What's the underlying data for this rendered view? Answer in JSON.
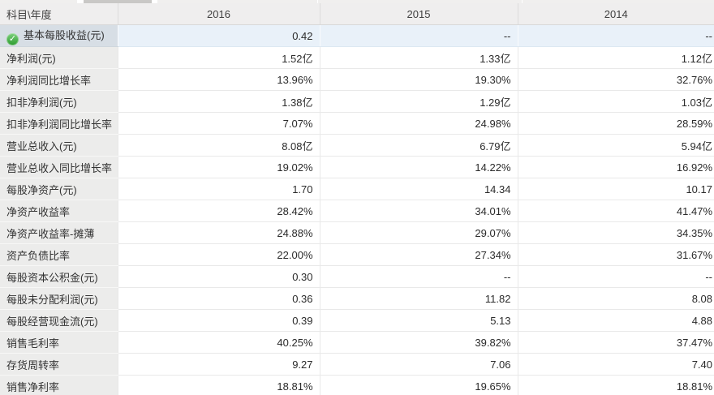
{
  "table": {
    "corner_header": "科目\\年度",
    "year_columns": [
      "2016",
      "2015",
      "2014"
    ],
    "rows": [
      {
        "label": "基本每股收益(元)",
        "values": [
          "0.42",
          "--",
          "--"
        ],
        "highlighted": true,
        "icon": "check"
      },
      {
        "label": "净利润(元)",
        "values": [
          "1.52亿",
          "1.33亿",
          "1.12亿"
        ]
      },
      {
        "label": "净利润同比增长率",
        "values": [
          "13.96%",
          "19.30%",
          "32.76%"
        ]
      },
      {
        "label": "扣非净利润(元)",
        "values": [
          "1.38亿",
          "1.29亿",
          "1.03亿"
        ]
      },
      {
        "label": "扣非净利润同比增长率",
        "values": [
          "7.07%",
          "24.98%",
          "28.59%"
        ]
      },
      {
        "label": "营业总收入(元)",
        "values": [
          "8.08亿",
          "6.79亿",
          "5.94亿"
        ]
      },
      {
        "label": "营业总收入同比增长率",
        "values": [
          "19.02%",
          "14.22%",
          "16.92%"
        ]
      },
      {
        "label": "每股净资产(元)",
        "values": [
          "1.70",
          "14.34",
          "10.17"
        ]
      },
      {
        "label": "净资产收益率",
        "values": [
          "28.42%",
          "34.01%",
          "41.47%"
        ]
      },
      {
        "label": "净资产收益率-摊薄",
        "values": [
          "24.88%",
          "29.07%",
          "34.35%"
        ]
      },
      {
        "label": "资产负债比率",
        "values": [
          "22.00%",
          "27.34%",
          "31.67%"
        ]
      },
      {
        "label": "每股资本公积金(元)",
        "values": [
          "0.30",
          "--",
          "--"
        ]
      },
      {
        "label": "每股未分配利润(元)",
        "values": [
          "0.36",
          "11.82",
          "8.08"
        ]
      },
      {
        "label": "每股经营现金流(元)",
        "values": [
          "0.39",
          "5.13",
          "4.88"
        ]
      },
      {
        "label": "销售毛利率",
        "values": [
          "40.25%",
          "39.82%",
          "37.47%"
        ]
      },
      {
        "label": "存货周转率",
        "values": [
          "9.27",
          "7.06",
          "7.40"
        ]
      },
      {
        "label": "销售净利率",
        "values": [
          "18.81%",
          "19.65%",
          "18.81%"
        ]
      }
    ],
    "colors": {
      "header_bg": "#efeeee",
      "label_col_bg": "#ececeb",
      "highlight_label_bg": "#d7dee5",
      "highlight_value_bg": "#e9f1f9",
      "check_green": "#2a9b2d"
    },
    "check_glyph": "✓"
  }
}
